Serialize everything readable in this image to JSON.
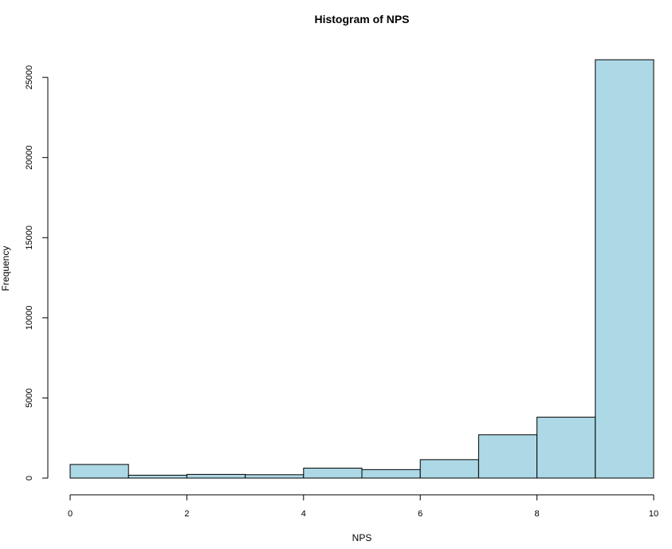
{
  "chart_data": {
    "type": "bar",
    "title": "Histogram of NPS",
    "xlabel": "NPS",
    "ylabel": "Frequency",
    "bins": [
      {
        "from": 0,
        "to": 1,
        "value": 850
      },
      {
        "from": 1,
        "to": 2,
        "value": 180
      },
      {
        "from": 2,
        "to": 3,
        "value": 230
      },
      {
        "from": 3,
        "to": 4,
        "value": 210
      },
      {
        "from": 4,
        "to": 5,
        "value": 620
      },
      {
        "from": 5,
        "to": 6,
        "value": 530
      },
      {
        "from": 6,
        "to": 7,
        "value": 1150
      },
      {
        "from": 7,
        "to": 8,
        "value": 2700
      },
      {
        "from": 8,
        "to": 9,
        "value": 3800
      },
      {
        "from": 9,
        "to": 10,
        "value": 26100
      }
    ],
    "xlim": [
      0,
      10
    ],
    "ylim": [
      0,
      26100
    ],
    "x_ticks": [
      0,
      2,
      4,
      6,
      8,
      10
    ],
    "x_tick_labels": [
      "0",
      "2",
      "4",
      "6",
      "8",
      "10"
    ],
    "y_ticks": [
      0,
      5000,
      10000,
      15000,
      20000,
      25000
    ],
    "y_tick_labels": [
      "0",
      "5000",
      "10000",
      "15000",
      "20000",
      "25000"
    ],
    "grid": false,
    "legend": "none",
    "colors": {
      "bar_fill": "#add8e6",
      "bar_stroke": "#000000",
      "axis": "#000000",
      "background": "#ffffff"
    }
  }
}
